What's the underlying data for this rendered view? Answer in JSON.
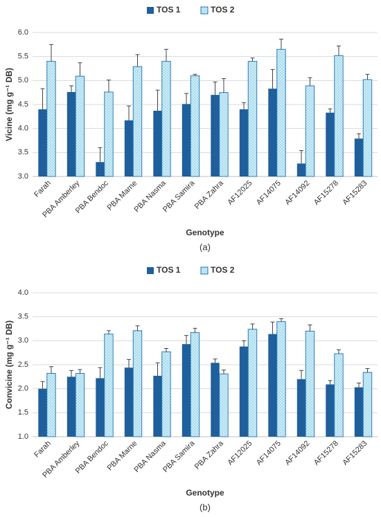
{
  "chart_data": [
    {
      "type": "bar",
      "ylabel": "Vicine (mg g⁻¹ DB)",
      "xlabel": "Genotype",
      "caption": "(a)",
      "legend": "top",
      "grid": true,
      "categories": [
        "Farah",
        "PBA Amberley",
        "PBA Bendoc",
        "PBA Marne",
        "PBA Nasma",
        "PBA Samira",
        "PBA Zahra",
        "AF12025",
        "AF14075",
        "AF14092",
        "AF15278",
        "AF15283"
      ],
      "series": [
        {
          "name": "TOS 1",
          "color": "#1f5f9c",
          "values": [
            4.4,
            4.76,
            3.3,
            4.17,
            4.37,
            4.51,
            4.7,
            4.4,
            4.83,
            3.27,
            4.33,
            3.79
          ],
          "errors": [
            0.43,
            0.13,
            0.3,
            0.3,
            0.43,
            0.22,
            0.27,
            0.14,
            0.4,
            0.27,
            0.08,
            0.1
          ]
        },
        {
          "name": "TOS 2",
          "color": "#cdeef7",
          "values": [
            5.4,
            5.09,
            4.76,
            5.29,
            5.4,
            5.1,
            4.75,
            5.4,
            5.65,
            4.89,
            5.52,
            5.02
          ],
          "errors": [
            0.35,
            0.28,
            0.25,
            0.25,
            0.25,
            0.03,
            0.29,
            0.07,
            0.21,
            0.17,
            0.2,
            0.11
          ]
        }
      ],
      "ylim": [
        3.0,
        6.0
      ],
      "yticks": [
        {
          "value": 3,
          "label": "3.0"
        },
        {
          "value": 3.5,
          "label": "3.5"
        },
        {
          "value": 4,
          "label": "4.0"
        },
        {
          "value": 4.5,
          "label": "4.5"
        },
        {
          "value": 5,
          "label": "5.0"
        },
        {
          "value": 5.5,
          "label": "5.5"
        },
        {
          "value": 6,
          "label": "6.0"
        }
      ]
    },
    {
      "type": "bar",
      "ylabel": "Convicine (mg g⁻¹ DB)",
      "xlabel": "Genotype",
      "caption": "(b)",
      "legend": "top",
      "grid": true,
      "categories": [
        "Farah",
        "PBA Amberley",
        "PBA Bendoc",
        "PBA Marne",
        "PBA Nasma",
        "PBA Samira",
        "PBA Zahra",
        "AF12025",
        "AF14075",
        "AF14092",
        "AF15278",
        "AF15283"
      ],
      "series": [
        {
          "name": "TOS 1",
          "color": "#1f5f9c",
          "values": [
            2.0,
            2.25,
            2.22,
            2.44,
            2.27,
            2.93,
            2.54,
            2.88,
            3.14,
            2.2,
            2.09,
            2.03
          ],
          "errors": [
            0.15,
            0.13,
            0.22,
            0.17,
            0.27,
            0.18,
            0.08,
            0.12,
            0.25,
            0.18,
            0.08,
            0.09
          ]
        },
        {
          "name": "TOS 2",
          "color": "#cdeef7",
          "values": [
            2.32,
            2.32,
            3.14,
            3.21,
            2.77,
            3.17,
            2.31,
            3.24,
            3.4,
            3.2,
            2.73,
            2.34
          ],
          "errors": [
            0.14,
            0.08,
            0.07,
            0.1,
            0.07,
            0.09,
            0.08,
            0.11,
            0.06,
            0.13,
            0.08,
            0.08
          ]
        }
      ],
      "ylim": [
        1.0,
        4.0
      ],
      "yticks": [
        {
          "value": 1,
          "label": "1.0"
        },
        {
          "value": 1.5,
          "label": "1.5"
        },
        {
          "value": 2,
          "label": "2.0"
        },
        {
          "value": 2.5,
          "label": "2.5"
        },
        {
          "value": 3,
          "label": "3.0"
        },
        {
          "value": 3.5,
          "label": "3.5"
        },
        {
          "value": 4,
          "label": "4.0"
        }
      ]
    }
  ]
}
